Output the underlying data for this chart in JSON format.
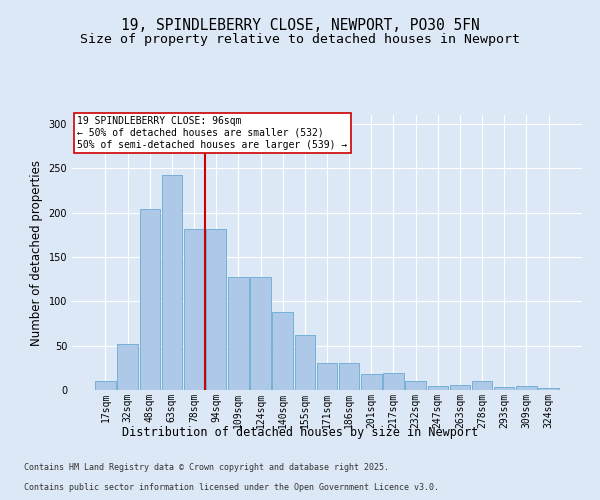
{
  "title_line1": "19, SPINDLEBERRY CLOSE, NEWPORT, PO30 5FN",
  "title_line2": "Size of property relative to detached houses in Newport",
  "xlabel": "Distribution of detached houses by size in Newport",
  "ylabel": "Number of detached properties",
  "categories": [
    "17sqm",
    "32sqm",
    "48sqm",
    "63sqm",
    "78sqm",
    "94sqm",
    "109sqm",
    "124sqm",
    "140sqm",
    "155sqm",
    "171sqm",
    "186sqm",
    "201sqm",
    "217sqm",
    "232sqm",
    "247sqm",
    "263sqm",
    "278sqm",
    "293sqm",
    "309sqm",
    "324sqm"
  ],
  "values": [
    10,
    52,
    204,
    242,
    181,
    181,
    127,
    127,
    88,
    62,
    31,
    31,
    18,
    19,
    10,
    5,
    6,
    10,
    3,
    4,
    2
  ],
  "bar_color": "#aec9e8",
  "bar_edge_color": "#6aaad4",
  "vline_x_index": 4.5,
  "vline_color": "#cc0000",
  "annotation_text": "19 SPINDLEBERRY CLOSE: 96sqm\n← 50% of detached houses are smaller (532)\n50% of semi-detached houses are larger (539) →",
  "annotation_box_color": "#ffffff",
  "annotation_box_edge": "#cc0000",
  "ylim": [
    0,
    310
  ],
  "yticks": [
    0,
    50,
    100,
    150,
    200,
    250,
    300
  ],
  "footer_line1": "Contains HM Land Registry data © Crown copyright and database right 2025.",
  "footer_line2": "Contains public sector information licensed under the Open Government Licence v3.0.",
  "bg_color": "#dce8f5",
  "plot_bg_color": "#dce8f5",
  "title_fontsize": 10.5,
  "subtitle_fontsize": 9.5,
  "tick_fontsize": 7,
  "label_fontsize": 8.5,
  "footer_fontsize": 6.0
}
